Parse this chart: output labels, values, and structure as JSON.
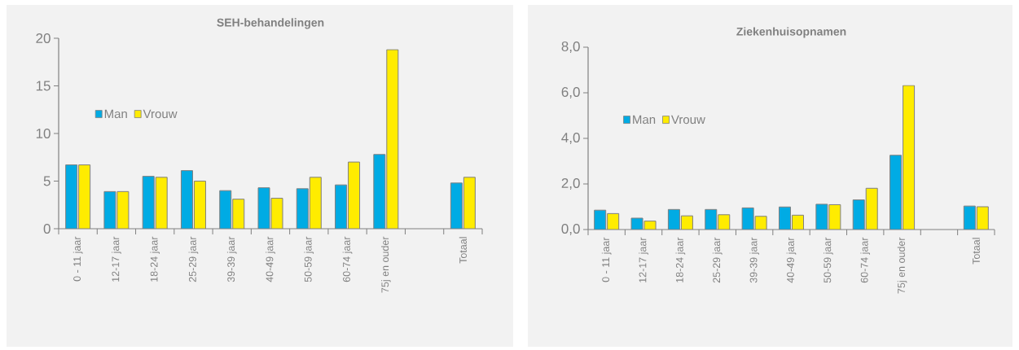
{
  "chart_data": [
    {
      "type": "bar",
      "title": "SEH-behandelingen",
      "categories": [
        "0 - 11 jaar",
        "12-17 jaar",
        "18-24 jaar",
        "25-29 jaar",
        "39-39 jaar",
        "40-49 jaar",
        "50-59 jaar",
        "60-74 jaar",
        "75j en ouder",
        null,
        "Totaal"
      ],
      "series": [
        {
          "name": "Man",
          "color": "#00abe4",
          "values": [
            6.7,
            3.9,
            5.5,
            6.1,
            4.0,
            4.3,
            4.2,
            4.6,
            7.8,
            null,
            4.8
          ]
        },
        {
          "name": "Vrouw",
          "color": "#ffec00",
          "values": [
            6.7,
            3.9,
            5.4,
            5.0,
            3.1,
            3.2,
            5.4,
            7.0,
            18.8,
            null,
            5.4
          ]
        }
      ],
      "ylim": [
        0,
        20
      ],
      "yticks": [
        0,
        5,
        10,
        15,
        20
      ],
      "legend": "left"
    },
    {
      "type": "bar",
      "title": "Ziekenhuisopnamen",
      "categories": [
        "0 - 11 jaar",
        "12-17 jaar",
        "18-24 jaar",
        "25-29 jaar",
        "39-39 jaar",
        "40-49 jaar",
        "50-59 jaar",
        "60-74 jaar",
        "75j en ouder",
        null,
        "Totaal"
      ],
      "series": [
        {
          "name": "Man",
          "color": "#00abe4",
          "values": [
            0.85,
            0.5,
            0.88,
            0.88,
            0.95,
            0.99,
            1.11,
            1.3,
            3.26,
            null,
            1.03
          ]
        },
        {
          "name": "Vrouw",
          "color": "#ffec00",
          "values": [
            0.7,
            0.37,
            0.6,
            0.65,
            0.58,
            0.63,
            1.09,
            1.81,
            6.32,
            null,
            1.0
          ]
        }
      ],
      "ylim": [
        0,
        8
      ],
      "yticks": [
        {
          "value": 0,
          "label": "0,0"
        },
        {
          "value": 2,
          "label": "2,0"
        },
        {
          "value": 4,
          "label": "4,0"
        },
        {
          "value": 6,
          "label": "6,0"
        },
        {
          "value": 8,
          "label": "8,0"
        }
      ],
      "legend": "left"
    }
  ]
}
